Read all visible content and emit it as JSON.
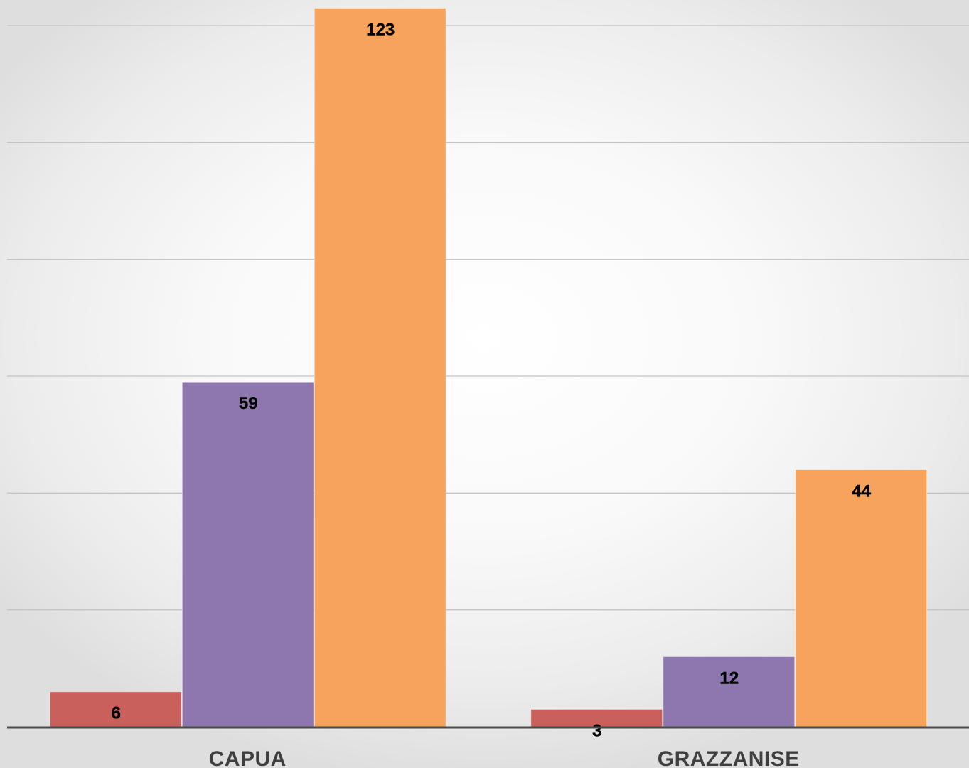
{
  "chart_data": {
    "type": "bar",
    "categories": [
      "CAPUA",
      "GRAZZANISE"
    ],
    "series": [
      {
        "values": [
          6,
          3
        ],
        "color": "#c9605b"
      },
      {
        "values": [
          59,
          12
        ],
        "color": "#8e76ae"
      },
      {
        "values": [
          123,
          44
        ],
        "color": "#f7a35c"
      }
    ],
    "data_labels": true,
    "ylim": [
      0,
      120
    ],
    "grid": true,
    "legend": "none",
    "title": "",
    "xlabel": "",
    "ylabel": ""
  }
}
